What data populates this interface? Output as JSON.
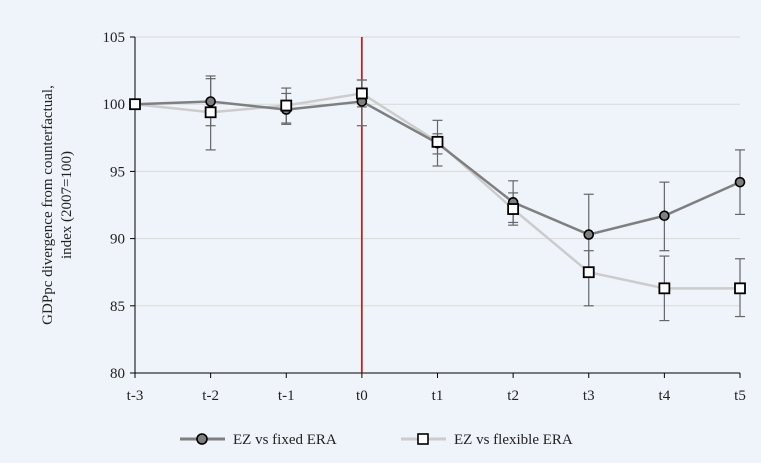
{
  "chart_data": {
    "type": "line",
    "title": "",
    "xlabel": "",
    "ylabel_lines": [
      "GDPpc divergence from counterfactual,",
      "index (2007=100)"
    ],
    "ylim": [
      80,
      105
    ],
    "yticks": [
      80,
      85,
      90,
      95,
      100,
      105
    ],
    "categories": [
      "t-3",
      "t-2",
      "t-1",
      "t0",
      "t1",
      "t2",
      "t3",
      "t4",
      "t5"
    ],
    "vline_at": "t0",
    "grid": "horizontal",
    "legend_position": "bottom",
    "series": [
      {
        "name": "EZ vs fixed ERA",
        "marker": "circle",
        "color": "#7f7f7f",
        "values": [
          100.0,
          100.2,
          99.6,
          100.2,
          97.1,
          92.7,
          90.3,
          91.7,
          94.2
        ],
        "err_low": [
          100.0,
          98.4,
          98.5,
          98.4,
          96.3,
          91.0,
          87.4,
          89.1,
          91.8
        ],
        "err_high": [
          100.0,
          102.1,
          100.8,
          101.8,
          97.8,
          94.3,
          93.3,
          94.2,
          96.6
        ]
      },
      {
        "name": "EZ vs flexible ERA",
        "marker": "square",
        "color": "#cccccc",
        "values": [
          100.0,
          99.4,
          99.9,
          100.8,
          97.2,
          92.2,
          87.5,
          86.3,
          86.3
        ],
        "err_low": [
          100.0,
          96.6,
          98.6,
          99.8,
          95.4,
          91.2,
          85.0,
          83.9,
          84.2
        ],
        "err_high": [
          100.0,
          101.9,
          101.2,
          101.8,
          98.8,
          93.4,
          89.1,
          88.7,
          88.5
        ]
      }
    ]
  },
  "colors": {
    "background": "#eef4f9",
    "axis": "#000000",
    "grid": "#d9d9d9",
    "vline": "#c00000",
    "marker_fill_circle": "#7f7f7f",
    "marker_fill_square": "#ffffff",
    "errorbar": "#666666"
  }
}
